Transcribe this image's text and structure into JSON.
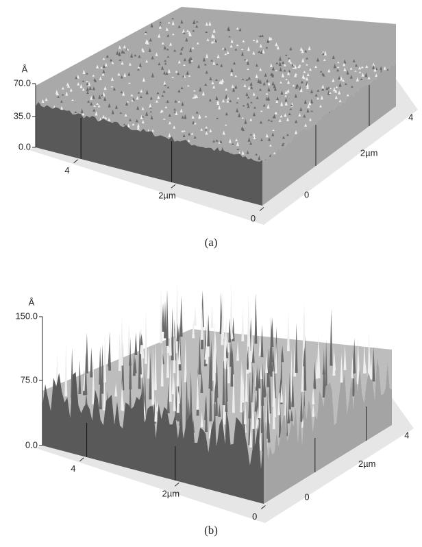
{
  "panels": [
    {
      "z_unit": "Å",
      "z_ticks": [
        "70.0",
        "35.0",
        "0.0"
      ],
      "front_ticks": [
        "4",
        "2µm",
        "0"
      ],
      "side_ticks": [
        "0",
        "2µm",
        "4"
      ],
      "caption": "(a)"
    },
    {
      "z_unit": "Å",
      "z_ticks": [
        "150.0",
        "75.0",
        "0.0"
      ],
      "front_ticks": [
        "4",
        "2µm",
        "0"
      ],
      "side_ticks": [
        "0",
        "2µm",
        "4"
      ],
      "caption": "(b)"
    }
  ]
}
